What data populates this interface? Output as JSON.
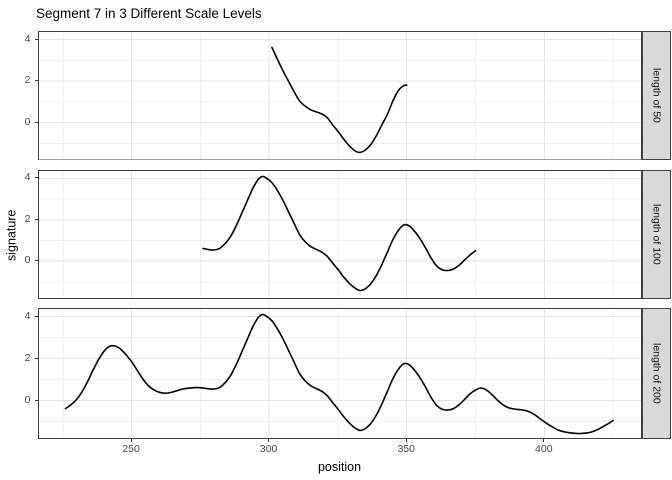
{
  "title": "Segment 7 in 3 Different Scale Levels",
  "chart_data": {
    "type": "line",
    "title": "Segment 7 in 3 Different Scale Levels",
    "xlabel": "position",
    "ylabel": "signature",
    "grid": true,
    "legend": "none",
    "xlim": [
      216,
      435.5
    ],
    "ylim": [
      -1.83,
      4.41
    ],
    "x_ticks": [
      250,
      300,
      350,
      400
    ],
    "x_minor_ticks": [
      225,
      275,
      325,
      375,
      425
    ],
    "y_ticks": [
      0,
      2,
      4
    ],
    "y_minor_ticks": [
      -1,
      1,
      3
    ],
    "facets": [
      {
        "label": "length of 50",
        "x_range": [
          301,
          350
        ],
        "points": [
          [
            301,
            3.62
          ],
          [
            303,
            3.05
          ],
          [
            305,
            2.5
          ],
          [
            307,
            2.0
          ],
          [
            309,
            1.5
          ],
          [
            311,
            1.05
          ],
          [
            313,
            0.8
          ],
          [
            315,
            0.62
          ],
          [
            317,
            0.52
          ],
          [
            319,
            0.42
          ],
          [
            321,
            0.25
          ],
          [
            323,
            -0.1
          ],
          [
            325,
            -0.42
          ],
          [
            327,
            -0.78
          ],
          [
            329,
            -1.1
          ],
          [
            331,
            -1.35
          ],
          [
            333,
            -1.44
          ],
          [
            335,
            -1.32
          ],
          [
            337,
            -1.05
          ],
          [
            339,
            -0.62
          ],
          [
            341,
            -0.1
          ],
          [
            343,
            0.4
          ],
          [
            345,
            1.05
          ],
          [
            347,
            1.55
          ],
          [
            349,
            1.78
          ],
          [
            350,
            1.8
          ]
        ]
      },
      {
        "label": "length of 100",
        "x_range": [
          276,
          375
        ],
        "points": [
          [
            276,
            0.62
          ],
          [
            278,
            0.56
          ],
          [
            280,
            0.54
          ],
          [
            282,
            0.62
          ],
          [
            284,
            0.85
          ],
          [
            286,
            1.2
          ],
          [
            288,
            1.7
          ],
          [
            290,
            2.3
          ],
          [
            292,
            2.9
          ],
          [
            294,
            3.5
          ],
          [
            296,
            3.95
          ],
          [
            297.5,
            4.1
          ],
          [
            299,
            4.02
          ],
          [
            301,
            3.8
          ],
          [
            303,
            3.42
          ],
          [
            305,
            2.95
          ],
          [
            307,
            2.4
          ],
          [
            309,
            1.85
          ],
          [
            311,
            1.3
          ],
          [
            313,
            0.95
          ],
          [
            315,
            0.72
          ],
          [
            317,
            0.58
          ],
          [
            319,
            0.45
          ],
          [
            321,
            0.25
          ],
          [
            323,
            -0.08
          ],
          [
            325,
            -0.4
          ],
          [
            327,
            -0.75
          ],
          [
            329,
            -1.05
          ],
          [
            331,
            -1.28
          ],
          [
            333,
            -1.42
          ],
          [
            335,
            -1.33
          ],
          [
            337,
            -1.08
          ],
          [
            339,
            -0.68
          ],
          [
            341,
            -0.15
          ],
          [
            343,
            0.45
          ],
          [
            345,
            1.05
          ],
          [
            347,
            1.5
          ],
          [
            349,
            1.76
          ],
          [
            351,
            1.7
          ],
          [
            353,
            1.42
          ],
          [
            355,
            1.05
          ],
          [
            357,
            0.6
          ],
          [
            359,
            0.12
          ],
          [
            361,
            -0.25
          ],
          [
            363,
            -0.42
          ],
          [
            365,
            -0.45
          ],
          [
            367,
            -0.38
          ],
          [
            369,
            -0.2
          ],
          [
            371,
            0.05
          ],
          [
            373,
            0.3
          ],
          [
            375,
            0.5
          ]
        ]
      },
      {
        "label": "length of 200",
        "x_range": [
          226,
          425
        ],
        "points": [
          [
            226,
            -0.38
          ],
          [
            228,
            -0.2
          ],
          [
            230,
            0.05
          ],
          [
            232,
            0.42
          ],
          [
            234,
            0.9
          ],
          [
            236,
            1.45
          ],
          [
            238,
            1.95
          ],
          [
            240,
            2.35
          ],
          [
            242,
            2.58
          ],
          [
            244,
            2.6
          ],
          [
            246,
            2.45
          ],
          [
            248,
            2.18
          ],
          [
            250,
            1.85
          ],
          [
            252,
            1.45
          ],
          [
            254,
            1.05
          ],
          [
            256,
            0.72
          ],
          [
            258,
            0.52
          ],
          [
            260,
            0.4
          ],
          [
            262,
            0.35
          ],
          [
            264,
            0.38
          ],
          [
            266,
            0.45
          ],
          [
            268,
            0.53
          ],
          [
            270,
            0.58
          ],
          [
            272,
            0.61
          ],
          [
            274,
            0.62
          ],
          [
            276,
            0.6
          ],
          [
            278,
            0.56
          ],
          [
            280,
            0.55
          ],
          [
            282,
            0.62
          ],
          [
            284,
            0.85
          ],
          [
            286,
            1.2
          ],
          [
            288,
            1.7
          ],
          [
            290,
            2.3
          ],
          [
            292,
            2.9
          ],
          [
            294,
            3.5
          ],
          [
            296,
            3.95
          ],
          [
            297.5,
            4.1
          ],
          [
            299,
            4.02
          ],
          [
            301,
            3.8
          ],
          [
            303,
            3.42
          ],
          [
            305,
            2.95
          ],
          [
            307,
            2.4
          ],
          [
            309,
            1.85
          ],
          [
            311,
            1.3
          ],
          [
            313,
            0.95
          ],
          [
            315,
            0.72
          ],
          [
            317,
            0.58
          ],
          [
            319,
            0.45
          ],
          [
            321,
            0.25
          ],
          [
            323,
            -0.08
          ],
          [
            325,
            -0.4
          ],
          [
            327,
            -0.75
          ],
          [
            329,
            -1.05
          ],
          [
            331,
            -1.28
          ],
          [
            333,
            -1.42
          ],
          [
            335,
            -1.33
          ],
          [
            337,
            -1.08
          ],
          [
            339,
            -0.68
          ],
          [
            341,
            -0.15
          ],
          [
            343,
            0.45
          ],
          [
            345,
            1.05
          ],
          [
            347,
            1.5
          ],
          [
            349,
            1.76
          ],
          [
            351,
            1.7
          ],
          [
            353,
            1.42
          ],
          [
            355,
            1.05
          ],
          [
            357,
            0.6
          ],
          [
            359,
            0.12
          ],
          [
            361,
            -0.25
          ],
          [
            363,
            -0.42
          ],
          [
            365,
            -0.45
          ],
          [
            367,
            -0.38
          ],
          [
            369,
            -0.2
          ],
          [
            371,
            0.05
          ],
          [
            373,
            0.32
          ],
          [
            375,
            0.5
          ],
          [
            377,
            0.6
          ],
          [
            379,
            0.5
          ],
          [
            381,
            0.28
          ],
          [
            383,
            0.02
          ],
          [
            385,
            -0.2
          ],
          [
            387,
            -0.34
          ],
          [
            389,
            -0.4
          ],
          [
            391,
            -0.43
          ],
          [
            393,
            -0.47
          ],
          [
            395,
            -0.56
          ],
          [
            397,
            -0.72
          ],
          [
            399,
            -0.92
          ],
          [
            401,
            -1.1
          ],
          [
            403,
            -1.26
          ],
          [
            405,
            -1.4
          ],
          [
            407,
            -1.48
          ],
          [
            409,
            -1.53
          ],
          [
            411,
            -1.56
          ],
          [
            413,
            -1.57
          ],
          [
            415,
            -1.55
          ],
          [
            417,
            -1.5
          ],
          [
            419,
            -1.4
          ],
          [
            421,
            -1.27
          ],
          [
            423,
            -1.12
          ],
          [
            425,
            -0.95
          ]
        ]
      }
    ]
  },
  "colors": {
    "line": "#000000",
    "panel_bg": "#ffffff",
    "panel_border": "#404040",
    "grid_major": "#e3e3e3",
    "grid_minor": "#f0f0f0",
    "strip_bg": "#d9d9d9",
    "tick": "#333333",
    "tick_label": "#444444",
    "text": "#000000"
  }
}
